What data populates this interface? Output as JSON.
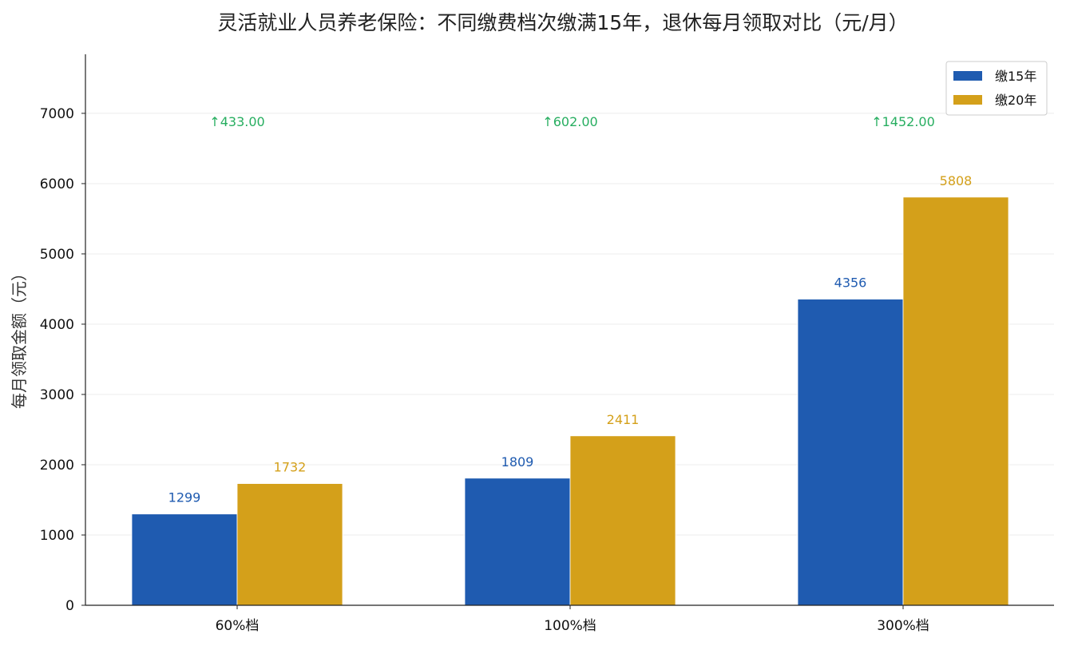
{
  "chart_data": {
    "type": "bar",
    "title": "灵活就业人员养老保险：不同缴费档次缴满15年，退休每月领取对比（元/月）",
    "xlabel": "",
    "ylabel": "每月领取金额（元）",
    "categories": [
      "60%档",
      "100%档",
      "300%档"
    ],
    "series": [
      {
        "name": "缴15年",
        "values": [
          1299,
          1809,
          4356
        ],
        "color": "#1f5bb0"
      },
      {
        "name": "缴20年",
        "values": [
          1732,
          2411,
          5808
        ],
        "color": "#d4a01a"
      }
    ],
    "value_labels": {
      "series_0": [
        "1299",
        "1809",
        "4356"
      ],
      "series_1": [
        "1732",
        "2411",
        "5808"
      ]
    },
    "differences": [
      {
        "value": 433.0,
        "label": "↑433.00"
      },
      {
        "value": 602.0,
        "label": "↑602.00"
      },
      {
        "value": 1452.0,
        "label": "↑1452.00"
      }
    ],
    "difference_color": "#27ae60",
    "ylim": [
      0,
      7840
    ],
    "yticks": [
      0,
      1000,
      2000,
      3000,
      4000,
      5000,
      6000,
      7000
    ],
    "ytick_labels": [
      "0",
      "1000",
      "2000",
      "3000",
      "4000",
      "5000",
      "6000",
      "7000"
    ],
    "difference_label_level": 6820,
    "grid": true,
    "grid_color": "#ececec",
    "legend": "top-right"
  }
}
